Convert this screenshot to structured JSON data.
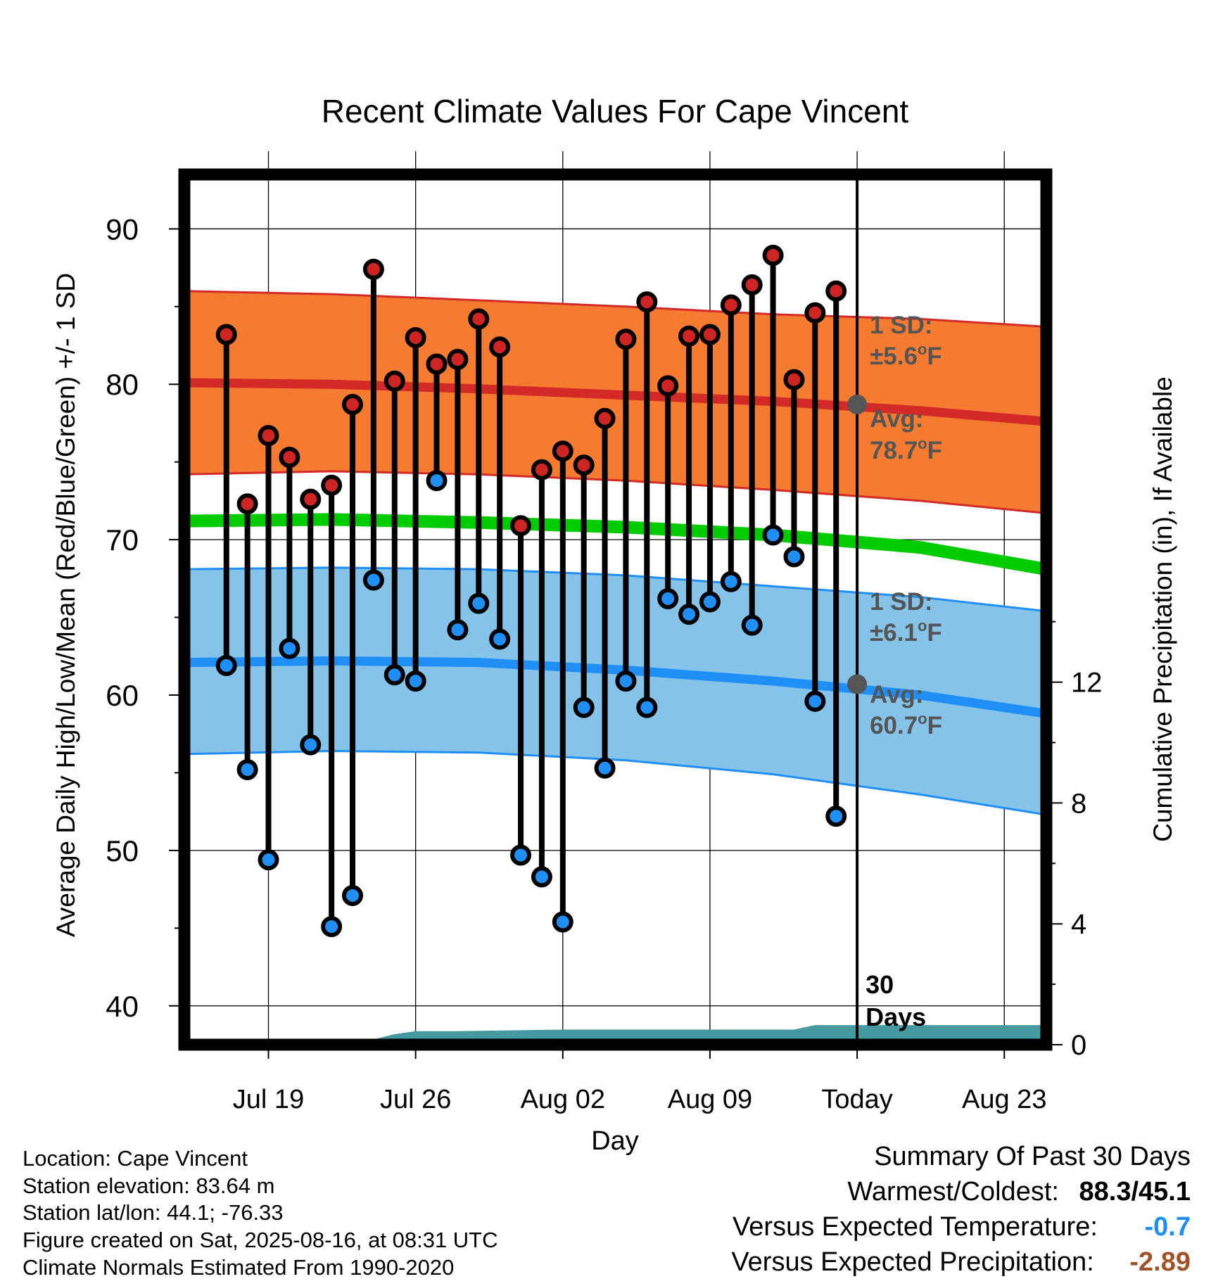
{
  "chart_data": {
    "type": "scatter",
    "title": "Recent Climate Values For Cape Vincent",
    "xlabel": "Day",
    "ylabel": "Average Daily High/Low/Mean (Red/Blue/Green) +/- 1 SD",
    "y2label": "Cumulative Precipitation (in), If Available",
    "ylim": [
      37.5,
      93.5
    ],
    "y2lim": [
      0,
      28.8
    ],
    "xlim": [
      "2025-07-15",
      "2025-08-25"
    ],
    "x_ticks": [
      "Jul 19",
      "Jul 26",
      "Aug 02",
      "Aug 09",
      "Today",
      "Aug 23"
    ],
    "x_tick_dates": [
      "2025-07-19",
      "2025-07-26",
      "2025-08-02",
      "2025-08-09",
      "2025-08-16",
      "2025-08-23"
    ],
    "y_ticks": [
      40,
      50,
      60,
      70,
      80,
      90
    ],
    "y2_ticks": [
      0,
      4,
      8,
      12
    ],
    "grid": true,
    "today": "2025-08-16",
    "today_label": "30\nDays",
    "dates": [
      "2025-07-17",
      "2025-07-18",
      "2025-07-19",
      "2025-07-20",
      "2025-07-21",
      "2025-07-22",
      "2025-07-23",
      "2025-07-24",
      "2025-07-25",
      "2025-07-26",
      "2025-07-27",
      "2025-07-28",
      "2025-07-29",
      "2025-07-30",
      "2025-07-31",
      "2025-08-01",
      "2025-08-02",
      "2025-08-03",
      "2025-08-04",
      "2025-08-05",
      "2025-08-06",
      "2025-08-07",
      "2025-08-08",
      "2025-08-09",
      "2025-08-10",
      "2025-08-11",
      "2025-08-12",
      "2025-08-13",
      "2025-08-14",
      "2025-08-15"
    ],
    "highs": [
      83.2,
      72.3,
      76.7,
      75.3,
      72.6,
      73.5,
      78.7,
      87.4,
      80.2,
      83.0,
      81.3,
      81.6,
      84.2,
      82.4,
      70.9,
      74.5,
      75.7,
      74.8,
      77.8,
      82.9,
      85.3,
      79.9,
      83.1,
      83.2,
      85.1,
      86.4,
      88.3,
      80.3,
      84.6,
      86.0
    ],
    "lows": [
      61.9,
      55.2,
      49.4,
      63.0,
      56.8,
      45.1,
      47.1,
      67.4,
      61.3,
      60.9,
      73.8,
      64.2,
      65.9,
      63.6,
      49.7,
      48.3,
      45.4,
      59.2,
      55.3,
      60.9,
      59.2,
      66.2,
      65.2,
      66.0,
      67.3,
      64.5,
      70.3,
      68.9,
      59.6,
      52.2
    ],
    "normals": {
      "dates": [
        "2025-07-15",
        "2025-07-22",
        "2025-07-29",
        "2025-08-05",
        "2025-08-12",
        "2025-08-19",
        "2025-08-25"
      ],
      "high_avg": [
        80.1,
        80.0,
        79.7,
        79.3,
        78.9,
        78.3,
        77.6
      ],
      "high_sd_upper": [
        86.0,
        85.8,
        85.4,
        85.0,
        84.5,
        84.2,
        83.7
      ],
      "high_sd_lower": [
        74.2,
        74.4,
        74.2,
        73.8,
        73.2,
        72.5,
        71.7
      ],
      "mean_avg": [
        71.2,
        71.3,
        71.1,
        70.8,
        70.3,
        69.5,
        68.1
      ],
      "low_avg": [
        62.1,
        62.2,
        62.1,
        61.6,
        60.9,
        60.0,
        58.8
      ],
      "low_sd_upper": [
        68.1,
        68.2,
        68.1,
        67.7,
        67.0,
        66.3,
        65.4
      ],
      "low_sd_lower": [
        56.2,
        56.4,
        56.3,
        55.8,
        54.9,
        53.6,
        52.3
      ]
    },
    "precip": {
      "dates": [
        "2025-07-15",
        "2025-07-23",
        "2025-07-25",
        "2025-07-26",
        "2025-07-28",
        "2025-08-02",
        "2025-08-13",
        "2025-08-14",
        "2025-08-25"
      ],
      "cumulative": [
        0,
        0,
        0.35,
        0.45,
        0.45,
        0.5,
        0.5,
        0.65,
        0.65
      ]
    },
    "annotations": {
      "high_sd": "1 SD:",
      "high_sd_val": "±5.6",
      "high_avg": "Avg:",
      "high_avg_val": "78.7",
      "low_sd": "1 SD:",
      "low_sd_val": "±6.1",
      "low_avg": "Avg:",
      "low_avg_val": "60.7",
      "unit_sup": "o",
      "unit": "F",
      "today_high_avg": 78.7,
      "today_low_avg": 60.7
    }
  },
  "colors": {
    "high_band": "#f47b2f",
    "high_line": "#d42a27",
    "mean_line": "#00cc00",
    "low_band": "#86c3e8",
    "low_line": "#1f8ff5",
    "high_dot": "#cf2424",
    "low_dot": "#1f8ff5",
    "precip": "#459aa0",
    "annot": "#555555",
    "warm_cold": "#000000",
    "temp_dev": "#1f8ff5",
    "precip_dev": "#a05228"
  },
  "metadata": {
    "location": "Location: Cape Vincent",
    "elevation": "Station elevation: 83.64 m",
    "latlon": "Station lat/lon: 44.1; -76.33",
    "created": "Figure created on Sat, 2025-08-16, at 08:31 UTC",
    "normals": "Climate Normals Estimated From 1990-2020"
  },
  "summary": {
    "title": "Summary Of Past 30 Days",
    "warm_cold_label": "Warmest/Coldest:",
    "warm_cold_value": "88.3/45.1",
    "temp_label": "Versus Expected Temperature:",
    "temp_value": "-0.7",
    "precip_label": "Versus Expected Precipitation:",
    "precip_value": "-2.89"
  }
}
